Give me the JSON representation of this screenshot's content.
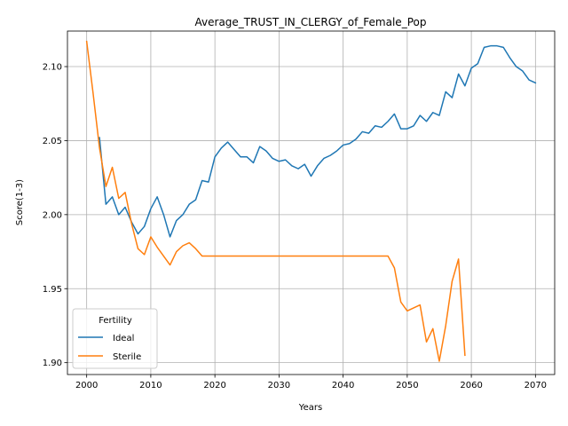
{
  "chart_data": {
    "type": "line",
    "title": "Average_TRUST_IN_CLERGY_of_Female_Pop",
    "xlabel": "Years",
    "ylabel": "Score(1-3)",
    "xlim": [
      1997,
      2073
    ],
    "ylim": [
      1.892,
      2.124
    ],
    "xticks": [
      2000,
      2010,
      2020,
      2030,
      2040,
      2050,
      2060,
      2070
    ],
    "yticks": [
      1.9,
      1.95,
      2.0,
      2.05,
      2.1
    ],
    "ytick_labels": [
      "1.90",
      "1.95",
      "2.00",
      "2.05",
      "2.10"
    ],
    "grid": true,
    "legend": {
      "title": "Fertility",
      "placement": "lower-left"
    },
    "series": [
      {
        "name": "Ideal",
        "color": "#1f77b4",
        "x": [
          2002,
          2003,
          2004,
          2005,
          2006,
          2007,
          2008,
          2009,
          2010,
          2011,
          2012,
          2013,
          2014,
          2015,
          2016,
          2017,
          2018,
          2019,
          2020,
          2021,
          2022,
          2023,
          2024,
          2025,
          2026,
          2027,
          2028,
          2029,
          2030,
          2031,
          2032,
          2033,
          2034,
          2035,
          2036,
          2037,
          2038,
          2039,
          2040,
          2041,
          2042,
          2043,
          2044,
          2045,
          2046,
          2047,
          2048,
          2049,
          2050,
          2051,
          2052,
          2053,
          2054,
          2055,
          2056,
          2057,
          2058,
          2059,
          2060,
          2061,
          2062,
          2063,
          2064,
          2065,
          2066,
          2067,
          2068,
          2069,
          2070
        ],
        "values": [
          2.052,
          2.007,
          2.012,
          2.0,
          2.005,
          1.995,
          1.987,
          1.992,
          2.004,
          2.012,
          2.0,
          1.985,
          1.996,
          2.0,
          2.007,
          2.01,
          2.023,
          2.022,
          2.039,
          2.045,
          2.049,
          2.044,
          2.039,
          2.039,
          2.035,
          2.046,
          2.043,
          2.038,
          2.036,
          2.037,
          2.033,
          2.031,
          2.034,
          2.026,
          2.033,
          2.038,
          2.04,
          2.043,
          2.047,
          2.048,
          2.051,
          2.056,
          2.055,
          2.06,
          2.059,
          2.063,
          2.068,
          2.058,
          2.058,
          2.06,
          2.067,
          2.063,
          2.069,
          2.067,
          2.083,
          2.079,
          2.095,
          2.087,
          2.099,
          2.102,
          2.113,
          2.114,
          2.114,
          2.113,
          2.106,
          2.1,
          2.097,
          2.091,
          2.089
        ]
      },
      {
        "name": "Sterile",
        "color": "#ff7f0e",
        "x": [
          2000,
          2001,
          2002,
          2003,
          2004,
          2005,
          2006,
          2007,
          2008,
          2009,
          2010,
          2011,
          2012,
          2013,
          2014,
          2015,
          2016,
          2017,
          2018,
          2019,
          2020,
          2021,
          2022,
          2023,
          2024,
          2025,
          2026,
          2027,
          2028,
          2029,
          2030,
          2031,
          2032,
          2033,
          2034,
          2035,
          2036,
          2037,
          2038,
          2039,
          2040,
          2041,
          2042,
          2043,
          2044,
          2045,
          2046,
          2047,
          2048,
          2049,
          2050,
          2051,
          2052,
          2053,
          2054,
          2055,
          2056,
          2057,
          2058,
          2059
        ],
        "values": [
          2.117,
          2.082,
          2.045,
          2.019,
          2.032,
          2.011,
          2.015,
          1.994,
          1.977,
          1.973,
          1.985,
          1.978,
          1.972,
          1.966,
          1.975,
          1.979,
          1.981,
          1.977,
          1.972,
          1.972,
          1.972,
          1.972,
          1.972,
          1.972,
          1.972,
          1.972,
          1.972,
          1.972,
          1.972,
          1.972,
          1.972,
          1.972,
          1.972,
          1.972,
          1.972,
          1.972,
          1.972,
          1.972,
          1.972,
          1.972,
          1.972,
          1.972,
          1.972,
          1.972,
          1.972,
          1.972,
          1.972,
          1.972,
          1.964,
          1.941,
          1.935,
          1.937,
          1.939,
          1.914,
          1.923,
          1.901,
          1.925,
          1.955,
          1.97,
          1.905
        ]
      }
    ]
  }
}
